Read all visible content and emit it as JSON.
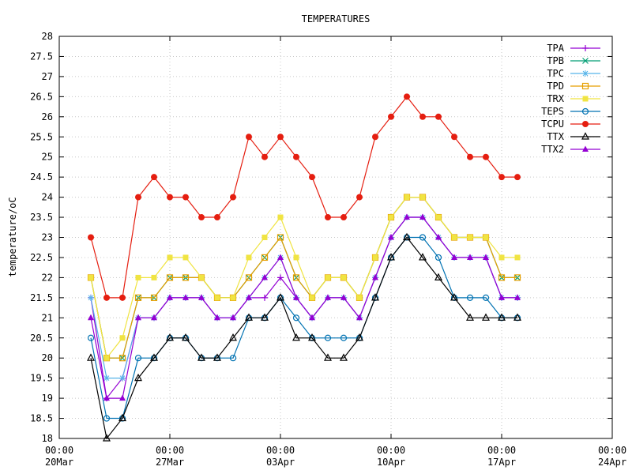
{
  "chart_data": {
    "type": "line",
    "title": "TEMPERATURES",
    "xlabel": "",
    "ylabel": "temperature/oC",
    "ylim": [
      18,
      28
    ],
    "xlim": [
      "2024-03-20T00:00",
      "2024-04-24T00:00"
    ],
    "y_ticks": [
      "18",
      "18.5",
      "19",
      "19.5",
      "20",
      "20.5",
      "21",
      "21.5",
      "22",
      "22.5",
      "23",
      "23.5",
      "24",
      "24.5",
      "25",
      "25.5",
      "26",
      "26.5",
      "27",
      "27.5",
      "28"
    ],
    "x_ticks": [
      {
        "time": "00:00",
        "date": "20Mar"
      },
      {
        "time": "00:00",
        "date": "27Mar"
      },
      {
        "time": "00:00",
        "date": "03Apr"
      },
      {
        "time": "00:00",
        "date": "10Apr"
      },
      {
        "time": "00:00",
        "date": "17Apr"
      },
      {
        "time": "00:00",
        "date": "24Apr"
      }
    ],
    "grid": true,
    "legend_position": "top-right",
    "x": [
      "2024-03-22T00:00",
      "2024-03-23T00:00",
      "2024-03-24T00:00",
      "2024-03-25T00:00",
      "2024-03-26T00:00",
      "2024-03-27T00:00",
      "2024-03-28T00:00",
      "2024-03-29T00:00",
      "2024-03-30T00:00",
      "2024-03-31T00:00",
      "2024-04-01T00:00",
      "2024-04-02T00:00",
      "2024-04-03T00:00",
      "2024-04-04T00:00",
      "2024-04-05T00:00",
      "2024-04-06T00:00",
      "2024-04-07T00:00",
      "2024-04-08T00:00",
      "2024-04-09T00:00",
      "2024-04-10T00:00",
      "2024-04-11T00:00",
      "2024-04-12T00:00",
      "2024-04-13T00:00",
      "2024-04-14T00:00",
      "2024-04-15T00:00",
      "2024-04-16T00:00",
      "2024-04-17T00:00",
      "2024-04-18T00:00"
    ],
    "series": [
      {
        "name": "TPA",
        "color": "#9400d3",
        "marker": "plus",
        "values": [
          21.5,
          19.0,
          19.5,
          21.0,
          21.0,
          21.5,
          21.5,
          21.5,
          21.0,
          21.0,
          21.5,
          21.5,
          22.0,
          21.5,
          21.0,
          21.5,
          21.5,
          21.0,
          22.0,
          23.0,
          23.5,
          23.5,
          23.0,
          22.5,
          22.5,
          22.5,
          21.5,
          21.5
        ]
      },
      {
        "name": "TPB",
        "color": "#009e73",
        "marker": "x",
        "values": [
          22.0,
          20.0,
          20.0,
          21.5,
          21.5,
          22.0,
          22.0,
          22.0,
          21.5,
          21.5,
          22.0,
          22.5,
          23.0,
          22.0,
          21.5,
          22.0,
          22.0,
          21.5,
          22.5,
          23.5,
          24.0,
          24.0,
          23.5,
          23.0,
          23.0,
          23.0,
          22.0,
          22.0
        ]
      },
      {
        "name": "TPC",
        "color": "#56b4e9",
        "marker": "star",
        "values": [
          21.5,
          19.5,
          19.5,
          21.0,
          21.0,
          21.5,
          21.5,
          21.5,
          21.0,
          21.0,
          21.5,
          22.0,
          22.5,
          21.5,
          21.0,
          21.5,
          21.5,
          21.0,
          22.0,
          23.0,
          23.5,
          23.5,
          23.0,
          22.5,
          22.5,
          22.5,
          21.5,
          21.5
        ]
      },
      {
        "name": "TPD",
        "color": "#e69f00",
        "marker": "square-open",
        "values": [
          22.0,
          20.0,
          20.0,
          21.5,
          21.5,
          22.0,
          22.0,
          22.0,
          21.5,
          21.5,
          22.0,
          22.5,
          23.0,
          22.0,
          21.5,
          22.0,
          22.0,
          21.5,
          22.5,
          23.5,
          24.0,
          24.0,
          23.5,
          23.0,
          23.0,
          23.0,
          22.0,
          22.0
        ]
      },
      {
        "name": "TRX",
        "color": "#f0e442",
        "marker": "square-filled",
        "values": [
          22.0,
          20.0,
          20.5,
          22.0,
          22.0,
          22.5,
          22.5,
          22.0,
          21.5,
          21.5,
          22.5,
          23.0,
          23.5,
          22.5,
          21.5,
          22.0,
          22.0,
          21.5,
          22.5,
          23.5,
          24.0,
          24.0,
          23.5,
          23.0,
          23.0,
          23.0,
          22.5,
          22.5
        ]
      },
      {
        "name": "TEPS",
        "color": "#0072b2",
        "marker": "circle-open",
        "values": [
          20.5,
          18.5,
          18.5,
          20.0,
          20.0,
          20.5,
          20.5,
          20.0,
          20.0,
          20.0,
          21.0,
          21.0,
          21.5,
          21.0,
          20.5,
          20.5,
          20.5,
          20.5,
          21.5,
          22.5,
          23.0,
          23.0,
          22.5,
          21.5,
          21.5,
          21.5,
          21.0,
          21.0
        ]
      },
      {
        "name": "TCPU",
        "color": "#e51e10",
        "marker": "circle-filled",
        "values": [
          23.0,
          21.5,
          21.5,
          24.0,
          24.5,
          24.0,
          24.0,
          23.5,
          23.5,
          24.0,
          25.5,
          25.0,
          25.5,
          25.0,
          24.5,
          23.5,
          23.5,
          24.0,
          25.5,
          26.0,
          26.5,
          26.0,
          26.0,
          25.5,
          25.0,
          25.0,
          24.5,
          24.5
        ]
      },
      {
        "name": "TTX",
        "color": "#000000",
        "marker": "triangle-open",
        "values": [
          20.0,
          18.0,
          18.5,
          19.5,
          20.0,
          20.5,
          20.5,
          20.0,
          20.0,
          20.5,
          21.0,
          21.0,
          21.5,
          20.5,
          20.5,
          20.0,
          20.0,
          20.5,
          21.5,
          22.5,
          23.0,
          22.5,
          22.0,
          21.5,
          21.0,
          21.0,
          21.0,
          21.0
        ]
      },
      {
        "name": "TTX2",
        "color": "#9400d3",
        "marker": "triangle-filled",
        "values": [
          21.0,
          19.0,
          19.0,
          21.0,
          21.0,
          21.5,
          21.5,
          21.5,
          21.0,
          21.0,
          21.5,
          22.0,
          22.5,
          21.5,
          21.0,
          21.5,
          21.5,
          21.0,
          22.0,
          23.0,
          23.5,
          23.5,
          23.0,
          22.5,
          22.5,
          22.5,
          21.5,
          21.5
        ]
      }
    ]
  }
}
